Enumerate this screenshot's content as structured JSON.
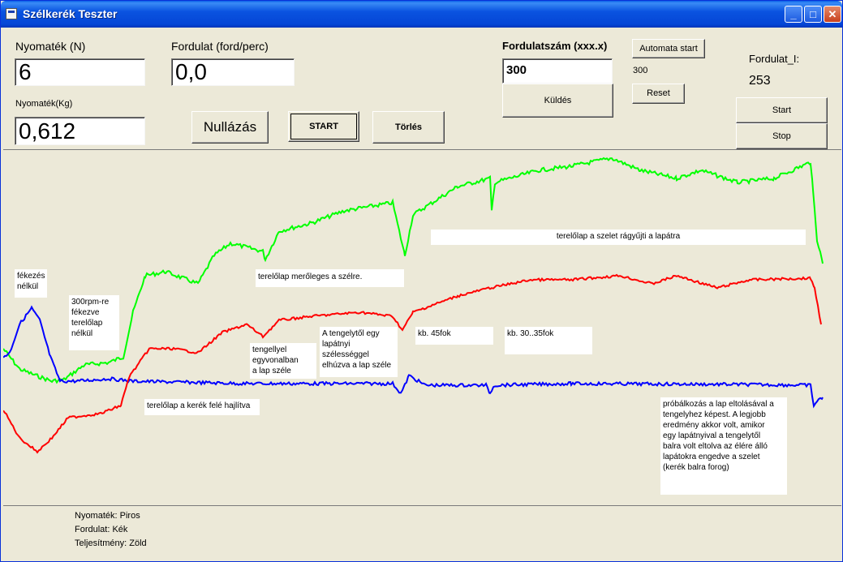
{
  "window": {
    "title": "Szélkerék Teszter"
  },
  "titlebar": {
    "minimize_glyph": "_",
    "maximize_glyph": "□",
    "close_glyph": "✕"
  },
  "left_panel": {
    "torque_n_label": "Nyomaték (N)",
    "torque_n_value": "6",
    "torque_kg_label": "Nyomaték(Kg)",
    "torque_kg_value": "0,612",
    "rpm_label": "Fordulat (ford/perc)",
    "rpm_value": "0,0"
  },
  "buttons": {
    "nullazas": "Nullázás",
    "start": "START",
    "torles": "Törlés"
  },
  "rpm_panel": {
    "heading": "Fordulatszám (xxx.x)",
    "input_value": "300",
    "send_label": "Küldés",
    "auto_start_label": "Automata start",
    "value_readout": "300",
    "reset_label": "Reset"
  },
  "fordulat_panel": {
    "label": "Fordulat_I:",
    "value": "253",
    "start_label": "Start",
    "stop_label": "Stop"
  },
  "annotations": {
    "fekezes": "fékezés\nnélkül",
    "fekezve": "300rpm-re\nfékezve\nterelőlap\nnélkül",
    "meroleges": "terelőlap merőleges a szélre.",
    "ragyujti": "terelőlap a szelet rágyűjti a lapátra",
    "tengellyel": "tengellyel\negyvonalban\na lap széle",
    "tengelytol": "A tengelytől egy\nlapátnyi\nszélességgel\nelhúzva a lap széle",
    "kb45": "kb. 45fok",
    "kb30": "kb. 30..35fok",
    "hajlitva": "terelőlap a kerék felé hajlítva",
    "probalkozas": "próbálkozás a lap eltolásával a\ntengelyhez képest. A legjobb\neredmény akkor volt, amikor\negy lapátnyival a tengelytől\nbalra volt eltolva az élére álló\nlapátokra engedve a szelet\n(kerék balra forog)"
  },
  "legend": {
    "torque": "Nyomaték: Piros",
    "rpm": "Fordulat: Kék",
    "power": "Teljesítmény: Zöld"
  },
  "colors": {
    "torque": "#ff0000",
    "rpm": "#0000ff",
    "power": "#00ff00",
    "titlebar": "#0546d6"
  }
}
